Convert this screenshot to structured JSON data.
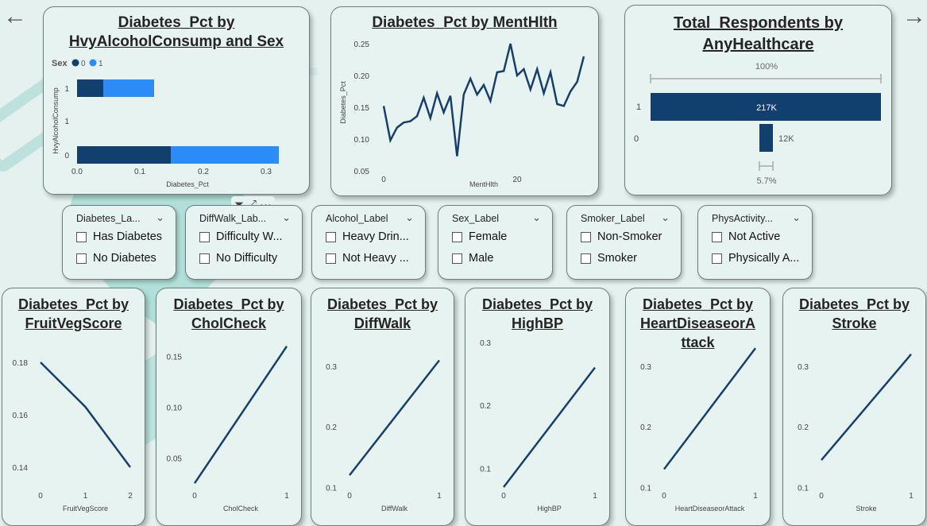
{
  "nav": {
    "back_icon": "←",
    "forward_icon": "→"
  },
  "colors": {
    "dark": "#12406e",
    "light": "#2b8cf7",
    "line": "#16406b"
  },
  "visuals": {
    "alcohol": {
      "title_line1": "Diabetes_Pct by",
      "title_line2": "HvyAlcoholConsump and Sex",
      "legend_title": "Sex",
      "legend_items": [
        "0",
        "1"
      ],
      "chart_data": {
        "type": "bar",
        "orientation": "horizontal",
        "stacked": true,
        "categories": [
          "1",
          "1",
          "0"
        ],
        "series": [
          {
            "name": "0",
            "values": [
              0.045,
              0.0,
              0.15
            ]
          },
          {
            "name": "1",
            "values": [
              0.085,
              0.0,
              0.175
            ]
          }
        ],
        "xlabel": "Diabetes_Pct",
        "ylabel": "HvyAlcoholConsump",
        "xticks": [
          "0.0",
          "0.1",
          "0.2",
          "0.3"
        ],
        "xlim": [
          0,
          0.33
        ]
      }
    },
    "menthlth": {
      "title": "Diabetes_Pct by MentHlth",
      "chart_data": {
        "type": "line",
        "xlabel": "MentHlth",
        "ylabel": "Diabetes_Pct",
        "xlim": [
          0,
          30
        ],
        "ylim": [
          0.05,
          0.25
        ],
        "xticks": [
          "0",
          "20"
        ],
        "yticks": [
          "0.05",
          "0.10",
          "0.15",
          "0.20",
          "0.25"
        ],
        "x": [
          0,
          1,
          2,
          3,
          4,
          5,
          6,
          7,
          8,
          9,
          10,
          11,
          12,
          13,
          14,
          15,
          16,
          17,
          18,
          19,
          20,
          21,
          22,
          23,
          24,
          25,
          26,
          27,
          28,
          29,
          30
        ],
        "y": [
          0.152,
          0.098,
          0.118,
          0.126,
          0.128,
          0.136,
          0.165,
          0.133,
          0.172,
          0.142,
          0.168,
          0.073,
          0.17,
          0.195,
          0.17,
          0.185,
          0.16,
          0.205,
          0.207,
          0.25,
          0.2,
          0.21,
          0.178,
          0.21,
          0.172,
          0.205,
          0.155,
          0.152,
          0.175,
          0.19,
          0.23
        ]
      }
    },
    "healthcare": {
      "title_line1": "Total_Respondents by",
      "title_line2": "AnyHealthcare",
      "chart_data": {
        "type": "bar",
        "orientation": "horizontal",
        "categories": [
          "1",
          "0"
        ],
        "values": [
          217000,
          12000
        ],
        "data_labels": [
          "217K",
          "12K"
        ],
        "pct_labels": [
          "100%",
          "5.7%"
        ]
      }
    },
    "fruitveg": {
      "title_line1": "Diabetes_Pct by",
      "title_line2": "FruitVegScore",
      "chart_data": {
        "type": "line",
        "xlabel": "FruitVegScore",
        "x": [
          0,
          1,
          2
        ],
        "y": [
          0.18,
          0.163,
          0.14
        ],
        "xlim": [
          0,
          2
        ],
        "ylim": [
          0.13,
          0.19
        ],
        "xticks": [
          "0",
          "1",
          "2"
        ],
        "yticks": [
          "0.14",
          "0.16",
          "0.18"
        ],
        "ytick_values": [
          0.14,
          0.16,
          0.18
        ]
      }
    },
    "cholcheck": {
      "title_line1": "Diabetes_Pct by",
      "title_line2": "CholCheck",
      "chart_data": {
        "type": "line",
        "xlabel": "CholCheck",
        "x": [
          0,
          1
        ],
        "y": [
          0.025,
          0.16
        ],
        "xlim": [
          0,
          1
        ],
        "ylim": [
          0.015,
          0.17
        ],
        "xticks": [
          "0",
          "1"
        ],
        "yticks": [
          "0.05",
          "0.10",
          "0.15"
        ],
        "ytick_values": [
          0.05,
          0.1,
          0.15
        ]
      }
    },
    "diffwalk": {
      "title_line1": "Diabetes_Pct by",
      "title_line2": "DiffWalk",
      "chart_data": {
        "type": "line",
        "xlabel": "DiffWalk",
        "x": [
          0,
          1
        ],
        "y": [
          0.12,
          0.31
        ],
        "xlim": [
          0,
          1
        ],
        "ylim": [
          0.09,
          0.35
        ],
        "xticks": [
          "0",
          "1"
        ],
        "yticks": [
          "0.1",
          "0.2",
          "0.3"
        ],
        "ytick_values": [
          0.1,
          0.2,
          0.3
        ]
      }
    },
    "highbp": {
      "title_line1": "Diabetes_Pct by",
      "title_line2": "HighBP",
      "chart_data": {
        "type": "line",
        "xlabel": "HighBP",
        "x": [
          0,
          1
        ],
        "y": [
          0.07,
          0.26
        ],
        "xlim": [
          0,
          1
        ],
        "ylim": [
          0.06,
          0.31
        ],
        "xticks": [
          "0",
          "1"
        ],
        "yticks": [
          "0.1",
          "0.2",
          "0.3"
        ],
        "ytick_values": [
          0.1,
          0.2,
          0.3
        ]
      }
    },
    "heartdisease": {
      "title_line1": "Diabetes_Pct by",
      "title_line2": "HeartDiseaseorA",
      "title_line3": "ttack",
      "chart_data": {
        "type": "line",
        "xlabel": "HeartDiseaseorAttack",
        "x": [
          0,
          1
        ],
        "y": [
          0.13,
          0.33
        ],
        "xlim": [
          0,
          1
        ],
        "ylim": [
          0.09,
          0.35
        ],
        "xticks": [
          "0",
          "1"
        ],
        "yticks": [
          "0.1",
          "0.2",
          "0.3"
        ],
        "ytick_values": [
          0.1,
          0.2,
          0.3
        ]
      }
    },
    "stroke": {
      "title_line1": "Diabetes_Pct by",
      "title_line2": "Stroke",
      "chart_data": {
        "type": "line",
        "xlabel": "Stroke",
        "x": [
          0,
          1
        ],
        "y": [
          0.145,
          0.32
        ],
        "xlim": [
          0,
          1
        ],
        "ylim": [
          0.09,
          0.35
        ],
        "xticks": [
          "0",
          "1"
        ],
        "yticks": [
          "0.1",
          "0.2",
          "0.3"
        ],
        "ytick_values": [
          0.1,
          0.2,
          0.3
        ]
      }
    }
  },
  "slicers": [
    {
      "title": "Diabetes_La...",
      "options": [
        "Has Diabetes",
        "No Diabetes"
      ]
    },
    {
      "title": "DiffWalk_Lab...",
      "options": [
        "Difficulty W...",
        "No Difficulty"
      ]
    },
    {
      "title": "Alcohol_Label",
      "options": [
        "Heavy Drin...",
        "Not Heavy ..."
      ]
    },
    {
      "title": "Sex_Label",
      "options": [
        "Female",
        "Male"
      ]
    },
    {
      "title": "Smoker_Label",
      "options": [
        "Non-Smoker",
        "Smoker"
      ]
    },
    {
      "title": "PhysActivity...",
      "options": [
        "Not Active",
        "Physically A..."
      ]
    }
  ],
  "slicer_chevron": "⌄",
  "toolbar": {
    "filter_icon": "⏷",
    "focus_icon": "⤢",
    "more_icon": "···"
  }
}
